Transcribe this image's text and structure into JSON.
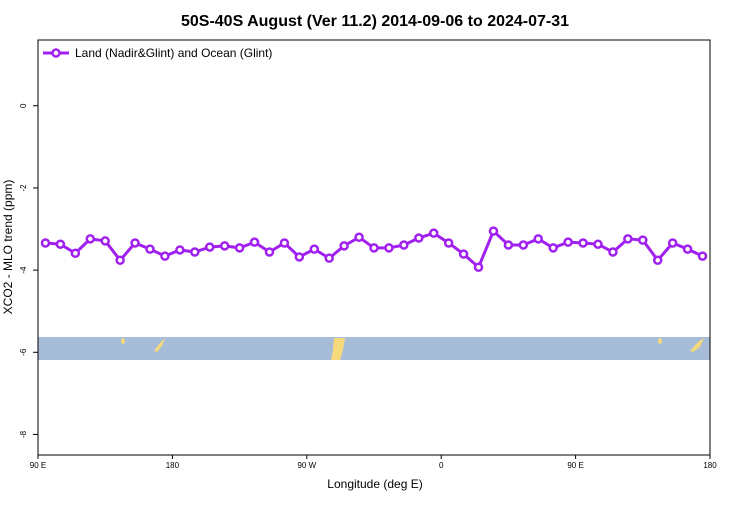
{
  "chart_data": {
    "type": "line",
    "title": "50S-40S August (Ver 11.2)   2014-09-06 to 2024-07-31",
    "x_label": "Longitude (deg E)",
    "y_label": "XCO2 - MLO trend (ppm)",
    "x": [
      95,
      105,
      115,
      125,
      135,
      145,
      155,
      165,
      175,
      185,
      195,
      205,
      215,
      225,
      235,
      245,
      255,
      265,
      275,
      285,
      295,
      305,
      315,
      325,
      335,
      345,
      355,
      365,
      375,
      385,
      395,
      405,
      415,
      425,
      435,
      445,
      455,
      465,
      475,
      485,
      495,
      505,
      515,
      525,
      535
    ],
    "series": [
      {
        "name": "Land (Nadir&Glint) and Ocean (Glint)",
        "color": "#a020f0",
        "values": [
          -3.34,
          -3.37,
          -3.59,
          -3.24,
          -3.29,
          -3.76,
          -3.34,
          -3.49,
          -3.66,
          -3.51,
          -3.56,
          -3.44,
          -3.41,
          -3.46,
          -3.32,
          -3.56,
          -3.34,
          -3.68,
          -3.49,
          -3.71,
          -3.41,
          -3.2,
          -3.46,
          -3.46,
          -3.39,
          -3.22,
          -3.1,
          -3.34,
          -3.61,
          -3.93,
          -3.05,
          -3.39,
          -3.39,
          -3.24,
          -3.46,
          -3.32,
          -3.34,
          -3.37,
          -3.56,
          -3.24,
          -3.27,
          -3.76,
          -3.34,
          -3.49,
          -3.66
        ]
      }
    ],
    "xlim": [
      90,
      540
    ],
    "xticks": [
      {
        "value": 90,
        "label": "90 E"
      },
      {
        "value": 180,
        "label": "180"
      },
      {
        "value": 270,
        "label": "90 W"
      },
      {
        "value": 360,
        "label": "0"
      },
      {
        "value": 450,
        "label": "90 E"
      },
      {
        "value": 540,
        "label": "180"
      }
    ],
    "ylim": [
      -8.5,
      1.6
    ],
    "yticks": [
      0,
      -2,
      -4,
      -6,
      -8
    ],
    "legend": "top-left"
  }
}
